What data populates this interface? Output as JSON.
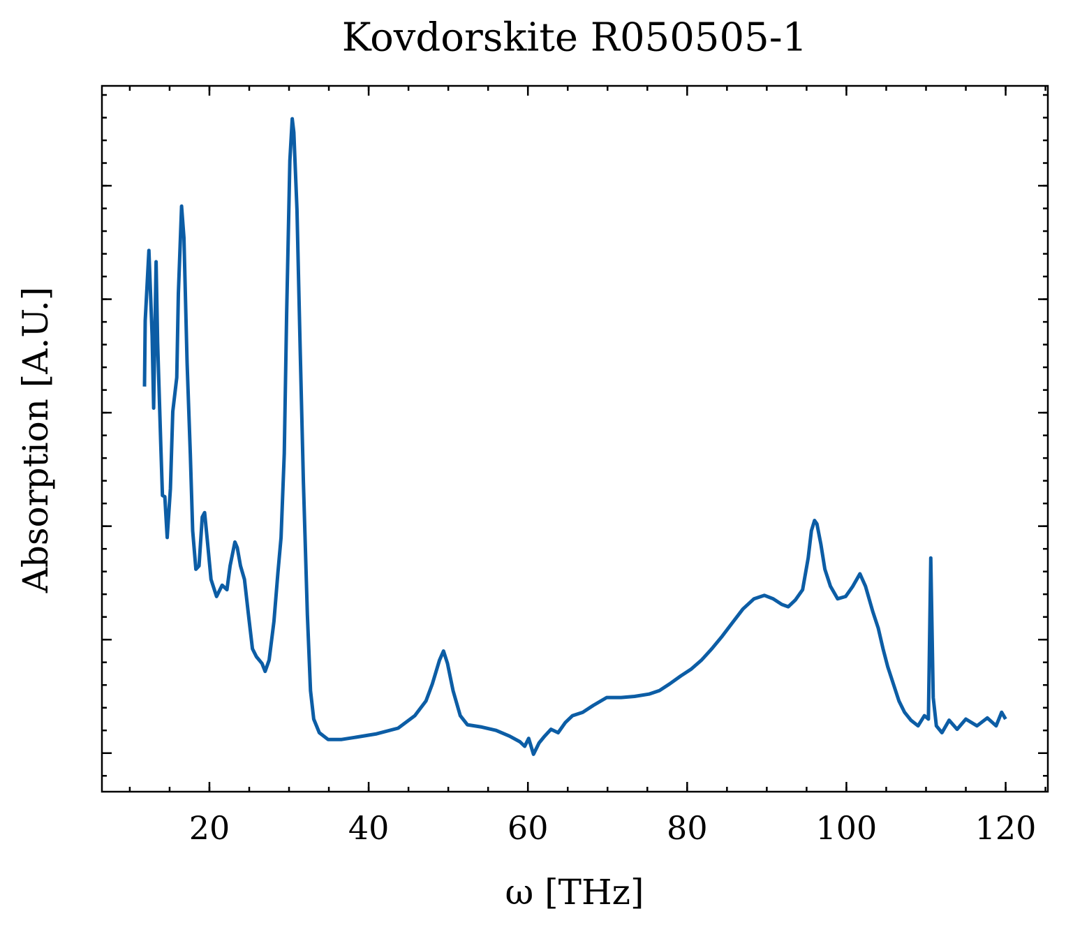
{
  "chart_data": {
    "type": "line",
    "title": "Kovdorskite R050505-1",
    "xlabel": "ω [THz]",
    "ylabel": "Absorption [A.U.]",
    "xlim": [
      6.5,
      125.3
    ],
    "xticks": [
      20,
      40,
      60,
      80,
      100,
      120
    ],
    "ylim": [
      -0.34,
      5.88
    ],
    "yticks": [
      0,
      1,
      2,
      3,
      4,
      5
    ],
    "ytick_labels_shown": false,
    "grid": false,
    "series": [
      {
        "color": "#0C5DA5",
        "x": [
          11.85,
          11.94,
          12.4,
          12.8,
          13.0,
          13.3,
          13.5,
          13.9,
          14.1,
          14.4,
          14.7,
          15.1,
          15.4,
          15.9,
          16.1,
          16.5,
          16.8,
          17.2,
          17.6,
          17.9,
          18.3,
          18.7,
          19.1,
          19.4,
          19.7,
          20.2,
          20.9,
          21.6,
          22.2,
          22.6,
          23.2,
          23.5,
          23.9,
          24.4,
          24.9,
          25.4,
          25.9,
          26.6,
          27.0,
          27.5,
          28.1,
          28.6,
          29.0,
          29.4,
          29.7,
          30.1,
          30.4,
          30.6,
          31.0,
          31.4,
          31.8,
          32.3,
          32.7,
          33.1,
          33.8,
          34.9,
          36.6,
          38.4,
          41.0,
          43.7,
          45.8,
          47.2,
          48.0,
          48.9,
          49.4,
          49.9,
          50.6,
          51.5,
          52.4,
          54.2,
          56.0,
          57.7,
          59.0,
          59.6,
          60.1,
          60.7,
          61.4,
          62.1,
          62.9,
          63.8,
          64.7,
          65.6,
          66.9,
          68.2,
          69.9,
          71.7,
          73.4,
          75.2,
          76.5,
          77.8,
          79.2,
          80.5,
          81.8,
          83.1,
          84.4,
          85.7,
          87.0,
          88.4,
          89.7,
          90.8,
          91.9,
          92.7,
          93.6,
          94.5,
          95.2,
          95.6,
          96.0,
          96.3,
          96.8,
          97.3,
          98.0,
          98.9,
          99.9,
          100.8,
          101.7,
          102.4,
          103.3,
          104.0,
          104.6,
          105.2,
          105.9,
          106.6,
          107.3,
          108.1,
          109.0,
          109.8,
          110.3,
          110.6,
          110.9,
          111.3,
          112.0,
          112.9,
          113.9,
          115.0,
          116.4,
          117.7,
          118.8,
          119.5,
          120.0
        ],
        "values": [
          3.23,
          3.81,
          4.43,
          3.68,
          3.04,
          4.33,
          3.62,
          2.7,
          2.27,
          2.26,
          1.9,
          2.33,
          3.01,
          3.31,
          4.05,
          4.82,
          4.54,
          3.44,
          2.64,
          1.96,
          1.62,
          1.65,
          2.08,
          2.12,
          1.9,
          1.53,
          1.38,
          1.48,
          1.44,
          1.65,
          1.86,
          1.81,
          1.65,
          1.53,
          1.22,
          0.92,
          0.85,
          0.79,
          0.72,
          0.82,
          1.16,
          1.59,
          1.9,
          2.64,
          3.87,
          5.22,
          5.59,
          5.47,
          4.79,
          3.56,
          2.39,
          1.22,
          0.55,
          0.3,
          0.18,
          0.12,
          0.12,
          0.14,
          0.17,
          0.22,
          0.33,
          0.46,
          0.61,
          0.82,
          0.9,
          0.79,
          0.55,
          0.33,
          0.25,
          0.23,
          0.2,
          0.15,
          0.1,
          0.06,
          0.13,
          -0.01,
          0.09,
          0.15,
          0.21,
          0.18,
          0.27,
          0.33,
          0.36,
          0.42,
          0.49,
          0.49,
          0.5,
          0.52,
          0.55,
          0.61,
          0.68,
          0.74,
          0.82,
          0.92,
          1.03,
          1.15,
          1.27,
          1.36,
          1.39,
          1.36,
          1.31,
          1.29,
          1.35,
          1.44,
          1.72,
          1.96,
          2.05,
          2.02,
          1.84,
          1.62,
          1.47,
          1.36,
          1.38,
          1.47,
          1.58,
          1.47,
          1.25,
          1.1,
          0.92,
          0.76,
          0.61,
          0.46,
          0.36,
          0.29,
          0.24,
          0.33,
          0.3,
          1.72,
          0.49,
          0.24,
          0.18,
          0.29,
          0.21,
          0.3,
          0.24,
          0.31,
          0.24,
          0.36,
          0.3
        ]
      }
    ]
  }
}
